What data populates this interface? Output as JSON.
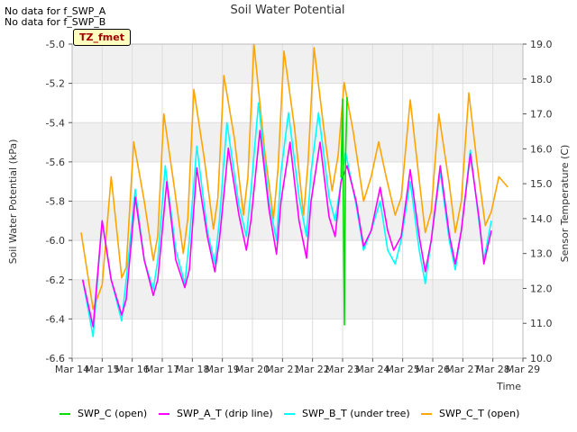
{
  "notes": [
    "No data for f_SWP_A",
    "No data for f_SWP_B"
  ],
  "tz_label": "TZ_fmet",
  "chart_data": {
    "type": "line",
    "title": "Soil Water Potential",
    "xlabel": "Time",
    "ylabel": "Soil Water Potential (kPa)",
    "y2label": "Sensor Temperature (C)",
    "xlim": [
      14,
      29
    ],
    "ylim": [
      -6.6,
      -5.0
    ],
    "y2lim": [
      10.0,
      19.0
    ],
    "x_ticks": [
      14,
      15,
      16,
      17,
      18,
      19,
      20,
      21,
      22,
      23,
      24,
      25,
      26,
      27,
      28,
      29
    ],
    "x_tick_labels": [
      "Mar 14",
      "Mar 15",
      "Mar 16",
      "Mar 17",
      "Mar 18",
      "Mar 19",
      "Mar 20",
      "Mar 21",
      "Mar 22",
      "Mar 23",
      "Mar 24",
      "Mar 25",
      "Mar 26",
      "Mar 27",
      "Mar 28",
      "Mar 29"
    ],
    "y_ticks": [
      -6.6,
      -6.4,
      -6.2,
      -6.0,
      -5.8,
      -5.6,
      -5.4,
      -5.2,
      -5.0
    ],
    "y_tick_labels": [
      "-6.6",
      "-6.4",
      "-6.2",
      "-6.0",
      "-5.8",
      "-5.6",
      "-5.4",
      "-5.2",
      "-5.0"
    ],
    "y2_ticks": [
      10,
      11,
      12,
      13,
      14,
      15,
      16,
      17,
      18,
      19
    ],
    "y2_tick_labels": [
      "10.0",
      "11.0",
      "12.0",
      "13.0",
      "14.0",
      "15.0",
      "16.0",
      "17.0",
      "18.0",
      "19.0"
    ],
    "grid": true,
    "legend_position": "bottom",
    "series": [
      {
        "name": "SWP_C (open)",
        "color": "#00dd00",
        "axis": "left",
        "x": [
          22.95,
          23.0,
          23.03,
          23.06,
          23.1,
          23.15
        ],
        "y": [
          -5.68,
          -5.28,
          -5.9,
          -6.43,
          -5.57,
          -5.27
        ]
      },
      {
        "name": "SWP_A_T (drip line)",
        "color": "#ff00ff",
        "axis": "left",
        "x": [
          14.35,
          14.7,
          15.0,
          15.3,
          15.65,
          15.8,
          16.1,
          16.4,
          16.7,
          16.85,
          17.15,
          17.45,
          17.75,
          17.9,
          18.15,
          18.5,
          18.75,
          18.9,
          19.2,
          19.55,
          19.8,
          19.95,
          20.25,
          20.55,
          20.8,
          20.95,
          21.25,
          21.55,
          21.8,
          21.95,
          22.25,
          22.55,
          22.75,
          22.95,
          23.15,
          23.45,
          23.7,
          23.95,
          24.25,
          24.5,
          24.7,
          24.95,
          25.25,
          25.55,
          25.75,
          25.95,
          26.25,
          26.55,
          26.75,
          26.95,
          27.25,
          27.55,
          27.7,
          27.95
        ],
        "y": [
          -6.2,
          -6.44,
          -5.9,
          -6.2,
          -6.38,
          -6.3,
          -5.78,
          -6.1,
          -6.28,
          -6.2,
          -5.7,
          -6.1,
          -6.24,
          -6.15,
          -5.63,
          -5.98,
          -6.16,
          -6.0,
          -5.53,
          -5.87,
          -6.05,
          -5.9,
          -5.44,
          -5.84,
          -6.07,
          -5.8,
          -5.5,
          -5.9,
          -6.09,
          -5.8,
          -5.5,
          -5.88,
          -5.98,
          -5.7,
          -5.62,
          -5.8,
          -6.03,
          -5.95,
          -5.73,
          -5.95,
          -6.05,
          -5.98,
          -5.64,
          -5.98,
          -6.16,
          -6.0,
          -5.62,
          -5.97,
          -6.12,
          -5.95,
          -5.56,
          -5.9,
          -6.12,
          -5.95
        ]
      },
      {
        "name": "SWP_B_T (under tree)",
        "color": "#00ffff",
        "axis": "left",
        "x": [
          14.35,
          14.7,
          15.0,
          15.3,
          15.65,
          15.8,
          16.1,
          16.4,
          16.7,
          16.85,
          17.1,
          17.45,
          17.75,
          17.9,
          18.15,
          18.5,
          18.75,
          18.9,
          19.15,
          19.55,
          19.8,
          19.95,
          20.2,
          20.55,
          20.8,
          20.95,
          21.2,
          21.55,
          21.8,
          21.95,
          22.2,
          22.55,
          22.75,
          22.95,
          23.1,
          23.45,
          23.7,
          23.95,
          24.25,
          24.5,
          24.75,
          24.95,
          25.25,
          25.55,
          25.75,
          25.95,
          26.25,
          26.55,
          26.75,
          26.95,
          27.25,
          27.55,
          27.7,
          27.95
        ],
        "y": [
          -6.2,
          -6.49,
          -5.9,
          -6.2,
          -6.41,
          -6.2,
          -5.74,
          -6.1,
          -6.25,
          -6.1,
          -5.62,
          -6.05,
          -6.22,
          -6.0,
          -5.52,
          -5.95,
          -6.12,
          -5.9,
          -5.4,
          -5.82,
          -5.98,
          -5.75,
          -5.3,
          -5.8,
          -6.0,
          -5.65,
          -5.35,
          -5.78,
          -5.98,
          -5.65,
          -5.35,
          -5.78,
          -5.9,
          -5.7,
          -5.55,
          -5.82,
          -6.05,
          -5.95,
          -5.8,
          -6.05,
          -6.12,
          -6.0,
          -5.7,
          -6.05,
          -6.22,
          -6.0,
          -5.65,
          -6.0,
          -6.15,
          -5.95,
          -5.54,
          -5.92,
          -6.1,
          -5.9
        ]
      },
      {
        "name": "SWP_C_T (open)",
        "color": "#ffa500",
        "axis": "right",
        "x": [
          14.3,
          14.7,
          15.0,
          15.3,
          15.65,
          15.8,
          16.05,
          16.4,
          16.7,
          16.85,
          17.05,
          17.4,
          17.7,
          17.85,
          18.05,
          18.4,
          18.7,
          18.85,
          19.05,
          19.4,
          19.7,
          19.85,
          20.05,
          20.4,
          20.7,
          20.85,
          21.05,
          21.4,
          21.7,
          21.85,
          22.05,
          22.4,
          22.65,
          22.85,
          23.05,
          23.35,
          23.7,
          23.95,
          24.2,
          24.45,
          24.75,
          24.95,
          25.25,
          25.55,
          25.75,
          25.95,
          26.2,
          26.55,
          26.75,
          26.95,
          27.2,
          27.5,
          27.75,
          27.95,
          28.2,
          28.4,
          28.5
        ],
        "y": [
          13.6,
          11.4,
          12.1,
          15.2,
          12.3,
          12.6,
          16.2,
          14.5,
          12.8,
          13.5,
          17.0,
          14.9,
          13.0,
          14.0,
          17.7,
          15.7,
          13.7,
          14.6,
          18.1,
          16.3,
          14.1,
          15.2,
          19.0,
          16.0,
          14.0,
          15.4,
          18.8,
          16.6,
          14.1,
          15.6,
          18.9,
          16.4,
          14.8,
          15.8,
          17.9,
          16.5,
          14.5,
          15.2,
          16.2,
          15.2,
          14.1,
          14.6,
          17.4,
          15.1,
          13.6,
          14.2,
          17.0,
          15.0,
          13.6,
          14.5,
          17.6,
          15.4,
          13.8,
          14.2,
          15.2,
          15.0,
          14.9
        ]
      }
    ]
  }
}
